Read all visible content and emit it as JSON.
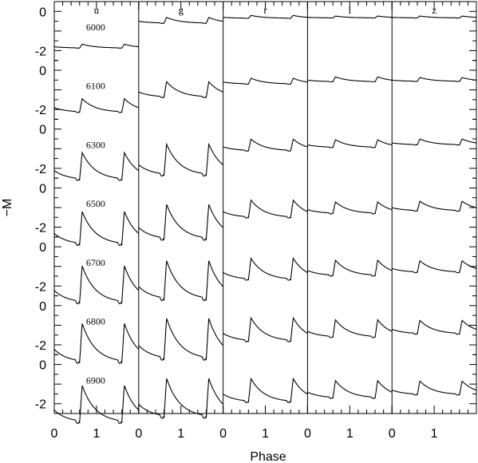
{
  "chart_data": {
    "type": "line",
    "xlabel": "Phase",
    "ylabel": "−M",
    "bands": [
      "u",
      "g",
      "r",
      "i",
      "z"
    ],
    "teff": [
      "6000",
      "6100",
      "6300",
      "6500",
      "6700",
      "6800",
      "6900"
    ],
    "x_tick_labels": [
      "0",
      "1"
    ],
    "y_tick_labels": [
      "0",
      "-2"
    ],
    "xlim": [
      0,
      2
    ],
    "ylim_per_row": [
      -2.5,
      0.5
    ],
    "baseline_magnitude": {
      "u": [
        -1.8,
        -1.9,
        -2.1,
        -2.3,
        -2.2,
        -2.2,
        -2.3
      ],
      "g": [
        -0.5,
        -1.1,
        -1.8,
        -2.0,
        -2.0,
        -2.0,
        -2.0
      ],
      "r": [
        -0.3,
        -0.6,
        -0.9,
        -1.2,
        -1.3,
        -1.4,
        -1.5
      ],
      "i": [
        -0.3,
        -0.5,
        -0.8,
        -1.1,
        -1.2,
        -1.3,
        -1.4
      ],
      "z": [
        -0.3,
        -0.5,
        -0.7,
        -1.0,
        -1.1,
        -1.2,
        -1.3
      ]
    },
    "amplitude": {
      "u": [
        0.2,
        0.7,
        1.4,
        1.7,
        1.9,
        2.0,
        1.9
      ],
      "g": [
        0.3,
        0.8,
        1.6,
        1.8,
        2.0,
        2.1,
        2.0
      ],
      "r": [
        0.15,
        0.3,
        0.6,
        0.9,
        1.1,
        1.2,
        1.2
      ],
      "i": [
        0.1,
        0.25,
        0.4,
        0.6,
        0.8,
        0.9,
        0.9
      ],
      "z": [
        0.1,
        0.2,
        0.3,
        0.5,
        0.6,
        0.7,
        0.7
      ]
    },
    "bump_phase": 0.6,
    "period": 1.0
  }
}
